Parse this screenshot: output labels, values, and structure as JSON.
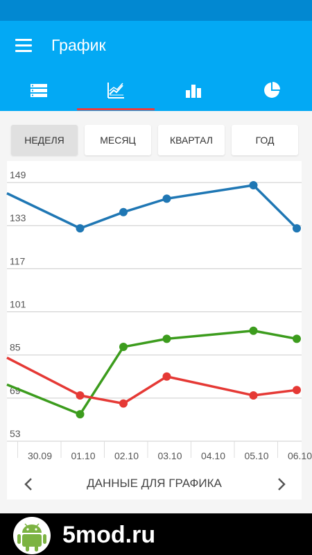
{
  "app": {
    "title": "График"
  },
  "tabs": [
    {
      "icon": "list-icon"
    },
    {
      "icon": "line-chart-icon",
      "active": true
    },
    {
      "icon": "bar-chart-icon"
    },
    {
      "icon": "pie-chart-icon"
    }
  ],
  "periods": [
    {
      "label": "НЕДЕЛЯ",
      "active": true
    },
    {
      "label": "МЕСЯЦ"
    },
    {
      "label": "КВАРТАЛ"
    },
    {
      "label": "ГОД"
    }
  ],
  "data_nav": {
    "label": "ДАННЫЕ ДЛЯ ГРАФИКА"
  },
  "banner": {
    "text": "5mod.ru"
  },
  "colors": {
    "appbar": "#03a9f4",
    "statusbar": "#0288d1",
    "indicator": "#ef3b3b",
    "blue": "#1f77b4",
    "green": "#3c9c1d",
    "red": "#e53935"
  },
  "chart_data": {
    "type": "line",
    "x": [
      "30.09",
      "01.10",
      "02.10",
      "03.10",
      "04.10",
      "05.10",
      "06.10"
    ],
    "y_ticks": [
      53,
      69,
      85,
      101,
      117,
      133,
      149
    ],
    "ylim": [
      53,
      157
    ],
    "grid": true,
    "series": [
      {
        "color": "#1f77b4",
        "values": [
          145,
          132,
          138,
          143,
          null,
          148,
          132
        ]
      },
      {
        "color": "#3c9c1d",
        "values": [
          74,
          63,
          88,
          91,
          null,
          94,
          91
        ]
      },
      {
        "color": "#e53935",
        "values": [
          84,
          70,
          67,
          77,
          null,
          70,
          72
        ]
      }
    ]
  }
}
